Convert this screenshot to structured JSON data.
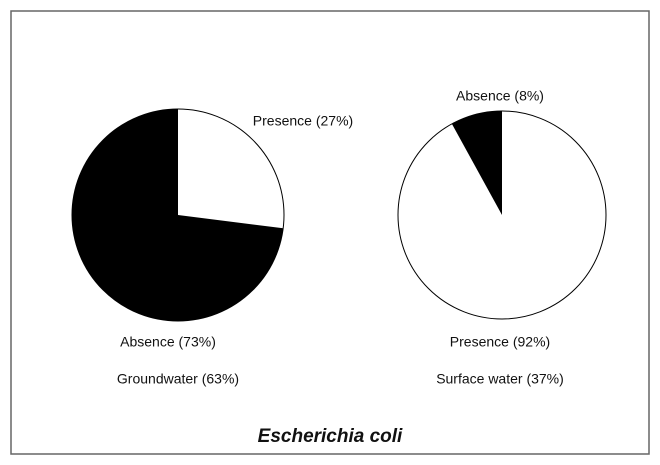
{
  "title": "Escherichia coli",
  "chart_data": [
    {
      "type": "pie",
      "title": "Groundwater (63%)",
      "values": [
        27,
        73
      ],
      "value_labels": [
        "Presence (27%)",
        "Absence (73%)"
      ],
      "colors": [
        "#ffffff",
        "#000000"
      ]
    },
    {
      "type": "pie",
      "title": "Surface water (37%)",
      "values": [
        92,
        8
      ],
      "value_labels": [
        "Presence (92%)",
        "Absence (8%)"
      ],
      "colors": [
        "#ffffff",
        "#000000"
      ]
    }
  ]
}
